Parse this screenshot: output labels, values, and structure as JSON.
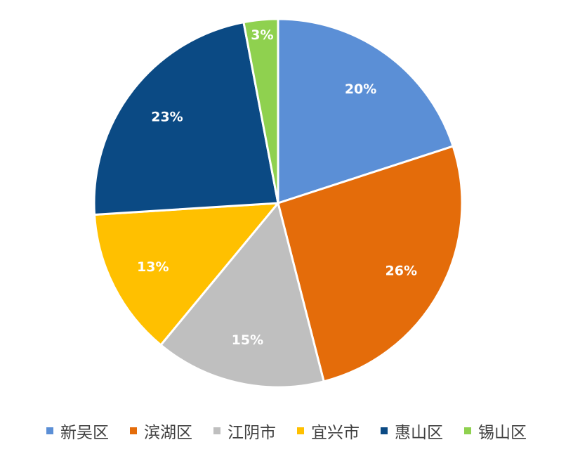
{
  "chart_data": {
    "type": "pie",
    "title": "",
    "categories": [
      "新吴区",
      "滨湖区",
      "江阴市",
      "宜兴市",
      "惠山区",
      "锡山区"
    ],
    "values": [
      20,
      26,
      15,
      13,
      23,
      3
    ],
    "labels": [
      "20%",
      "26%",
      "15%",
      "13%",
      "23%",
      "3%"
    ],
    "colors": [
      "#5b8fd6",
      "#e46c0a",
      "#bfbfbf",
      "#ffc000",
      "#0b4a84",
      "#8fd14f"
    ],
    "start_angle": "12 o'clock",
    "direction": "clockwise",
    "legend_position": "bottom"
  }
}
